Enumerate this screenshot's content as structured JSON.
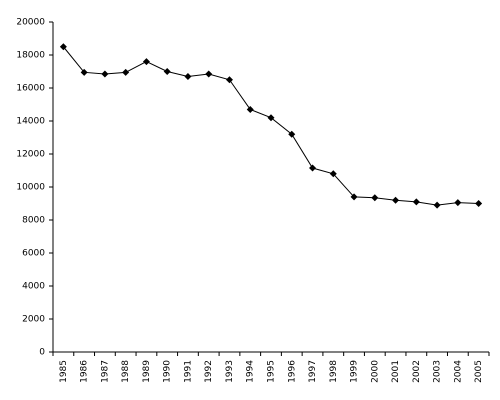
{
  "chart_data": {
    "type": "line",
    "categories": [
      "1985",
      "1986",
      "1987",
      "1988",
      "1989",
      "1990",
      "1991",
      "1992",
      "1993",
      "1994",
      "1995",
      "1996",
      "1997",
      "1998",
      "1999",
      "2000",
      "2001",
      "2002",
      "2003",
      "2004",
      "2005"
    ],
    "series": [
      {
        "color": "#000000",
        "values": [
          18500,
          16950,
          16850,
          16950,
          17600,
          17000,
          16700,
          16850,
          16500,
          14700,
          14200,
          13200,
          11150,
          10800,
          9400,
          9350,
          9200,
          9100,
          8900,
          9050,
          9000
        ]
      }
    ],
    "ylim": [
      0,
      20000
    ],
    "yticks": [
      0,
      2000,
      4000,
      6000,
      8000,
      10000,
      12000,
      14000,
      16000,
      18000,
      20000
    ],
    "grid": false,
    "marker": "diamond"
  }
}
